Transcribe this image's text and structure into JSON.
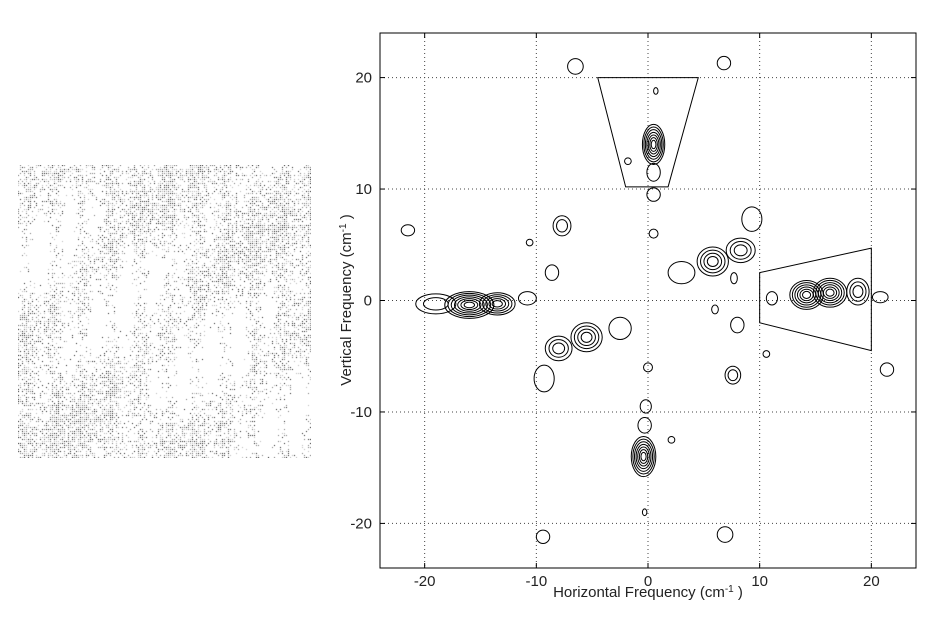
{
  "chart_data": {
    "type": "contour",
    "xlabel": "Horizontal Frequency (cm",
    "xlabel_sup": "-1",
    "xlabel_suffix": " )",
    "ylabel": "Vertical Frequency (cm",
    "ylabel_sup": "-1",
    "ylabel_suffix": " )",
    "xlim": [
      -24,
      24
    ],
    "ylim": [
      -24,
      24
    ],
    "xticks": [
      -20,
      -10,
      0,
      10,
      20
    ],
    "yticks": [
      20,
      10,
      0,
      -10,
      -20
    ],
    "grid": "dotted",
    "peaks": [
      {
        "x": 0.5,
        "y": 14,
        "rx": 1.0,
        "ry": 1.8,
        "levels": 7
      },
      {
        "x": 0.5,
        "y": 11.5,
        "rx": 0.6,
        "ry": 0.8,
        "levels": 1
      },
      {
        "x": 0.5,
        "y": 9.5,
        "rx": 0.6,
        "ry": 0.6,
        "levels": 1
      },
      {
        "x": 0.5,
        "y": 6,
        "rx": 0.4,
        "ry": 0.4,
        "levels": 1
      },
      {
        "x": 0.7,
        "y": 18.8,
        "rx": 0.2,
        "ry": 0.3,
        "levels": 1
      },
      {
        "x": -1.8,
        "y": 12.5,
        "rx": 0.3,
        "ry": 0.3,
        "levels": 1
      },
      {
        "x": -6.5,
        "y": 21,
        "rx": 0.7,
        "ry": 0.7,
        "levels": 1
      },
      {
        "x": 6.8,
        "y": 21.3,
        "rx": 0.6,
        "ry": 0.6,
        "levels": 1
      },
      {
        "x": -0.4,
        "y": -14,
        "rx": 1.1,
        "ry": 1.8,
        "levels": 7
      },
      {
        "x": -0.3,
        "y": -11.2,
        "rx": 0.6,
        "ry": 0.7,
        "levels": 1
      },
      {
        "x": -0.2,
        "y": -9.5,
        "rx": 0.5,
        "ry": 0.6,
        "levels": 1
      },
      {
        "x": 0.0,
        "y": -6,
        "rx": 0.4,
        "ry": 0.4,
        "levels": 1
      },
      {
        "x": 2.1,
        "y": -12.5,
        "rx": 0.3,
        "ry": 0.3,
        "levels": 1
      },
      {
        "x": -0.3,
        "y": -19,
        "rx": 0.2,
        "ry": 0.3,
        "levels": 1
      },
      {
        "x": -9.4,
        "y": -21.2,
        "rx": 0.6,
        "ry": 0.6,
        "levels": 1
      },
      {
        "x": 6.9,
        "y": -21,
        "rx": 0.7,
        "ry": 0.7,
        "levels": 1
      },
      {
        "x": -16,
        "y": -0.4,
        "rx": 2.2,
        "ry": 1.2,
        "levels": 7
      },
      {
        "x": -13.5,
        "y": -0.3,
        "rx": 1.6,
        "ry": 1.0,
        "levels": 5
      },
      {
        "x": -19,
        "y": -0.3,
        "rx": 1.8,
        "ry": 0.9,
        "levels": 2
      },
      {
        "x": -10.8,
        "y": 0.2,
        "rx": 0.8,
        "ry": 0.6,
        "levels": 1
      },
      {
        "x": -21.5,
        "y": 6.3,
        "rx": 0.6,
        "ry": 0.5,
        "levels": 1
      },
      {
        "x": -8.6,
        "y": 2.5,
        "rx": 0.6,
        "ry": 0.7,
        "levels": 1
      },
      {
        "x": -10.6,
        "y": 5.2,
        "rx": 0.3,
        "ry": 0.3,
        "levels": 1
      },
      {
        "x": -5.5,
        "y": -3.3,
        "rx": 1.4,
        "ry": 1.3,
        "levels": 4
      },
      {
        "x": -8,
        "y": -4.3,
        "rx": 1.2,
        "ry": 1.1,
        "levels": 3
      },
      {
        "x": -2.5,
        "y": -2.5,
        "rx": 1.0,
        "ry": 1.0,
        "levels": 1
      },
      {
        "x": -9.3,
        "y": -7.0,
        "rx": 0.9,
        "ry": 1.2,
        "levels": 1
      },
      {
        "x": -7.7,
        "y": 6.7,
        "rx": 0.8,
        "ry": 0.9,
        "levels": 2
      },
      {
        "x": 5.8,
        "y": 3.5,
        "rx": 1.4,
        "ry": 1.3,
        "levels": 4
      },
      {
        "x": 8.3,
        "y": 4.5,
        "rx": 1.3,
        "ry": 1.1,
        "levels": 3
      },
      {
        "x": 3.0,
        "y": 2.5,
        "rx": 1.2,
        "ry": 1.0,
        "levels": 1
      },
      {
        "x": 9.3,
        "y": 7.3,
        "rx": 0.9,
        "ry": 1.1,
        "levels": 1
      },
      {
        "x": 7.7,
        "y": 2.0,
        "rx": 0.3,
        "ry": 0.5,
        "levels": 1
      },
      {
        "x": 7.6,
        "y": -6.7,
        "rx": 0.7,
        "ry": 0.8,
        "levels": 2
      },
      {
        "x": 8.0,
        "y": -2.2,
        "rx": 0.6,
        "ry": 0.7,
        "levels": 1
      },
      {
        "x": 14.2,
        "y": 0.5,
        "rx": 1.5,
        "ry": 1.3,
        "levels": 6
      },
      {
        "x": 16.3,
        "y": 0.7,
        "rx": 1.5,
        "ry": 1.3,
        "levels": 6
      },
      {
        "x": 18.8,
        "y": 0.8,
        "rx": 1.0,
        "ry": 1.2,
        "levels": 3
      },
      {
        "x": 11.1,
        "y": 0.2,
        "rx": 0.5,
        "ry": 0.6,
        "levels": 1
      },
      {
        "x": 20.8,
        "y": 0.3,
        "rx": 0.7,
        "ry": 0.5,
        "levels": 1
      },
      {
        "x": 21.4,
        "y": -6.2,
        "rx": 0.6,
        "ry": 0.6,
        "levels": 1
      },
      {
        "x": 10.6,
        "y": -4.8,
        "rx": 0.3,
        "ry": 0.3,
        "levels": 1
      },
      {
        "x": 6.0,
        "y": -0.8,
        "rx": 0.3,
        "ry": 0.4,
        "levels": 1
      }
    ],
    "annotations": [
      {
        "shape": "trapezoid",
        "points": [
          [
            -4.5,
            20
          ],
          [
            4.5,
            20
          ],
          [
            1.8,
            10.2
          ],
          [
            -2.0,
            10.2
          ]
        ]
      },
      {
        "shape": "trapezoid",
        "points": [
          [
            10,
            2.5
          ],
          [
            20,
            4.7
          ],
          [
            20,
            -4.5
          ],
          [
            10,
            -2.0
          ]
        ]
      }
    ]
  },
  "texture_panel": {
    "description_colors": {
      "dark": "#222222",
      "mid": "#777777",
      "light": "#bbbbbb"
    }
  }
}
